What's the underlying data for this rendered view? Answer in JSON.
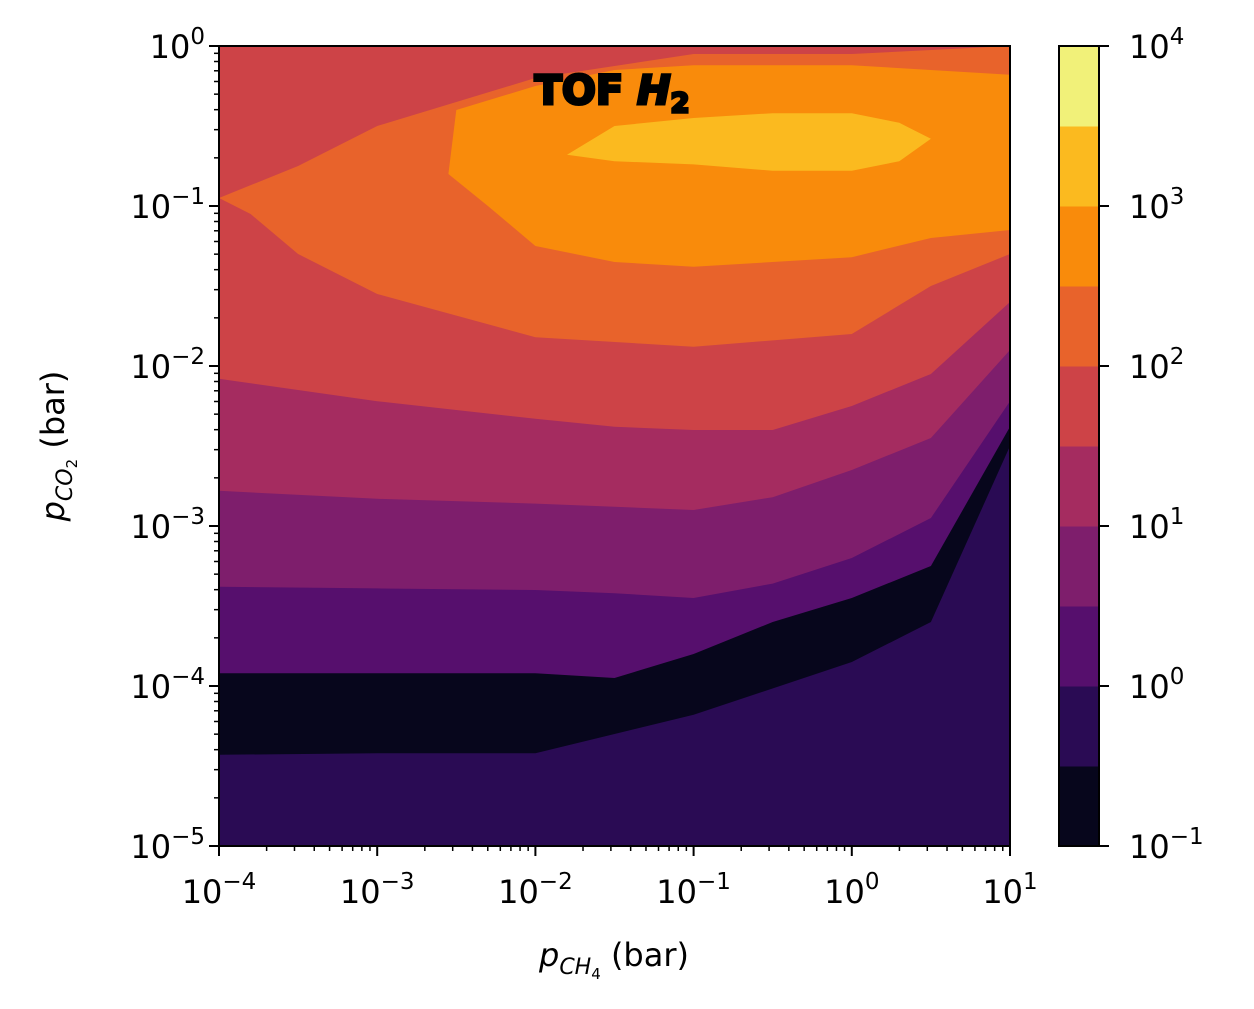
{
  "chart_data": {
    "type": "contour",
    "title_base": "TOF ",
    "title_species": "H",
    "title_sub": "2",
    "xlabel": {
      "var": "p",
      "sub": "CH",
      "subsub": "4",
      "unit": " (bar)"
    },
    "ylabel": {
      "var": "p",
      "sub": "CO",
      "subsub": "2",
      "unit": " (bar)"
    },
    "x_scale": "log",
    "y_scale": "log",
    "xlim": [
      0.0001,
      10
    ],
    "ylim": [
      1e-05,
      1
    ],
    "x_ticks": [
      {
        "base": "10",
        "exp": "−4"
      },
      {
        "base": "10",
        "exp": "−3"
      },
      {
        "base": "10",
        "exp": "−2"
      },
      {
        "base": "10",
        "exp": "−1"
      },
      {
        "base": "10",
        "exp": "0"
      },
      {
        "base": "10",
        "exp": "1"
      }
    ],
    "y_ticks": [
      {
        "base": "10",
        "exp": "−5"
      },
      {
        "base": "10",
        "exp": "−4"
      },
      {
        "base": "10",
        "exp": "−3"
      },
      {
        "base": "10",
        "exp": "−2"
      },
      {
        "base": "10",
        "exp": "−1"
      },
      {
        "base": "10",
        "exp": "0"
      }
    ],
    "colorbar": {
      "scale": "log",
      "range": [
        0.1,
        10000
      ],
      "colormap": "inferno",
      "ticks": [
        {
          "base": "10",
          "exp": "−1"
        },
        {
          "base": "10",
          "exp": "0"
        },
        {
          "base": "10",
          "exp": "1"
        },
        {
          "base": "10",
          "exp": "2"
        },
        {
          "base": "10",
          "exp": "3"
        },
        {
          "base": "10",
          "exp": "4"
        }
      ],
      "level_colors": [
        "#07061c",
        "#2a0b54",
        "#560f6d",
        "#7e1e6c",
        "#a52c60",
        "#cd4347",
        "#e8632b",
        "#f98b0b",
        "#fbba1f",
        "#f1f179"
      ]
    },
    "contour_boundaries": [
      {
        "level_index": 1,
        "points": [
          [
            -4,
            -4.43
          ],
          [
            -3,
            -4.42
          ],
          [
            -2,
            -4.42
          ],
          [
            -1.5,
            -4.3
          ],
          [
            -1,
            -4.18
          ],
          [
            0,
            -3.85
          ],
          [
            0.5,
            -3.6
          ],
          [
            1,
            -2.5
          ],
          [
            1,
            -5
          ],
          [
            -4,
            -5
          ]
        ]
      },
      {
        "level_index": 2,
        "points": [
          [
            -4,
            -3.92
          ],
          [
            -3,
            -3.92
          ],
          [
            -2,
            -3.92
          ],
          [
            -1.5,
            -3.95
          ],
          [
            -1,
            -3.8
          ],
          [
            -0.5,
            -3.6
          ],
          [
            0,
            -3.45
          ],
          [
            0.5,
            -3.25
          ],
          [
            1,
            -2.38
          ]
        ]
      },
      {
        "level_index": 3,
        "points": [
          [
            -4,
            -3.38
          ],
          [
            -3,
            -3.39
          ],
          [
            -2,
            -3.4
          ],
          [
            -1.5,
            -3.42
          ],
          [
            -1,
            -3.45
          ],
          [
            -0.5,
            -3.36
          ],
          [
            0,
            -3.2
          ],
          [
            0.5,
            -2.95
          ],
          [
            1,
            -2.22
          ]
        ]
      },
      {
        "level_index": 4,
        "points": [
          [
            -4,
            -2.78
          ],
          [
            -3,
            -2.83
          ],
          [
            -2,
            -2.86
          ],
          [
            -1.5,
            -2.88
          ],
          [
            -1,
            -2.9
          ],
          [
            -0.5,
            -2.82
          ],
          [
            0,
            -2.65
          ],
          [
            0.5,
            -2.45
          ],
          [
            1,
            -1.9
          ]
        ]
      },
      {
        "level_index": 5,
        "points": [
          [
            -4,
            -2.08
          ],
          [
            -3,
            -2.22
          ],
          [
            -2,
            -2.33
          ],
          [
            -1.5,
            -2.38
          ],
          [
            -1,
            -2.4
          ],
          [
            -0.5,
            -2.4
          ],
          [
            0,
            -2.25
          ],
          [
            0.5,
            -2.05
          ],
          [
            1,
            -1.6
          ]
        ]
      },
      {
        "level_index": 6,
        "points": [
          [
            -4,
            -0.95
          ],
          [
            -3.5,
            -0.75
          ],
          [
            -3,
            -0.5
          ],
          [
            -2.5,
            -0.35
          ],
          [
            -2,
            -0.2
          ],
          [
            -1,
            -0.05
          ],
          [
            0,
            -0.05
          ],
          [
            1,
            0
          ],
          [
            1,
            -1.3
          ],
          [
            0.5,
            -1.5
          ],
          [
            0,
            -1.8
          ],
          [
            -1,
            -1.88
          ],
          [
            -2,
            -1.82
          ],
          [
            -3,
            -1.55
          ],
          [
            -3.5,
            -1.3
          ],
          [
            -3.8,
            -1.05
          ]
        ]
      },
      {
        "level_index": 7,
        "points": [
          [
            -2.5,
            -0.4
          ],
          [
            -2,
            -0.25
          ],
          [
            -1.5,
            -0.15
          ],
          [
            -1,
            -0.12
          ],
          [
            0,
            -0.12
          ],
          [
            1,
            -0.18
          ],
          [
            1,
            -1.15
          ],
          [
            0.5,
            -1.2
          ],
          [
            0,
            -1.32
          ],
          [
            -1,
            -1.38
          ],
          [
            -1.5,
            -1.35
          ],
          [
            -2,
            -1.25
          ],
          [
            -2.3,
            -1.0
          ],
          [
            -2.55,
            -0.8
          ]
        ]
      },
      {
        "level_index": 8,
        "points": [
          [
            -1.8,
            -0.68
          ],
          [
            -1.5,
            -0.5
          ],
          [
            -1,
            -0.45
          ],
          [
            -0.5,
            -0.42
          ],
          [
            0,
            -0.42
          ],
          [
            0.3,
            -0.48
          ],
          [
            0.5,
            -0.58
          ],
          [
            0.3,
            -0.72
          ],
          [
            0,
            -0.78
          ],
          [
            -0.5,
            -0.78
          ],
          [
            -1,
            -0.74
          ],
          [
            -1.5,
            -0.72
          ]
        ]
      }
    ]
  }
}
